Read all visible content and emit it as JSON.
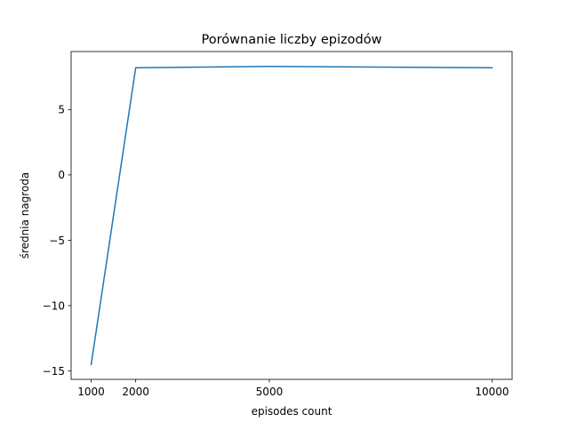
{
  "chart_data": {
    "type": "line",
    "title": "Porównanie liczby epizodów",
    "xlabel": "episodes count",
    "ylabel": "średnia nagroda",
    "x": [
      1000,
      2000,
      5000,
      10000
    ],
    "series": [
      {
        "values": [
          -14.5,
          8.2,
          8.3,
          8.2
        ]
      }
    ],
    "xticks": [
      1000,
      2000,
      5000,
      10000
    ],
    "xtick_labels": [
      "1000",
      "2000",
      "5000",
      "10000"
    ],
    "yticks": [
      -15,
      -10,
      -5,
      0,
      5
    ],
    "ytick_labels": [
      "−15",
      "−10",
      "−5",
      "0",
      "5"
    ],
    "xlim": [
      550,
      10450
    ],
    "ylim": [
      -15.64,
      9.44
    ],
    "grid": false,
    "colors": {
      "series": "#1f77b4",
      "axes": "#000000"
    }
  }
}
